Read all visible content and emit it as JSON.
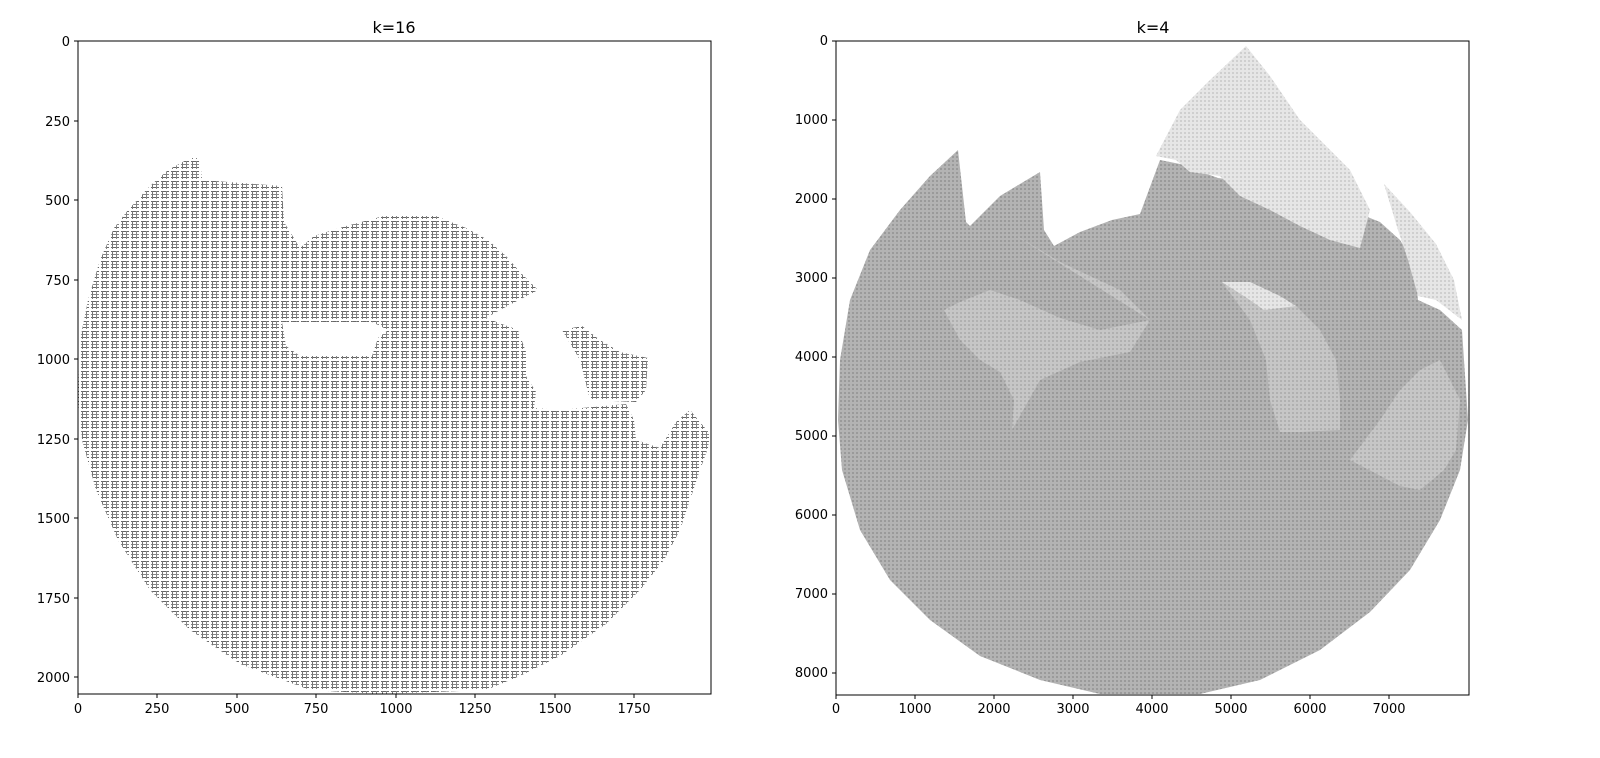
{
  "chart_data": [
    {
      "type": "heatmap",
      "title": "k=16",
      "xlabel": "",
      "ylabel": "",
      "xlim": [
        0,
        1990
      ],
      "ylim": [
        2060,
        0
      ],
      "x_ticks": [
        "0",
        "250",
        "500",
        "750",
        "1000",
        "1250",
        "1500",
        "1750"
      ],
      "y_ticks": [
        "0",
        "250",
        "500",
        "750",
        "1000",
        "1250",
        "1500",
        "1750",
        "2000"
      ],
      "render": "ascii-art",
      "glyphs": [
        "戲",
        "游",
        "人",
        "一"
      ],
      "fill_color": "#8f8f8f"
    },
    {
      "type": "heatmap",
      "title": "k=4",
      "xlabel": "",
      "ylabel": "",
      "xlim": [
        0,
        8000
      ],
      "ylim": [
        8300,
        0
      ],
      "x_ticks": [
        "0",
        "1000",
        "2000",
        "3000",
        "4000",
        "5000",
        "6000",
        "7000"
      ],
      "y_ticks": [
        "0",
        "1000",
        "2000",
        "3000",
        "4000",
        "5000",
        "6000",
        "7000",
        "8000"
      ],
      "render": "ascii-art",
      "colors": {
        "dark": "#a9a9a9",
        "mid": "#bdbdbd",
        "light": "#cfcfcf",
        "lightest": "#e2e2e2"
      }
    }
  ]
}
